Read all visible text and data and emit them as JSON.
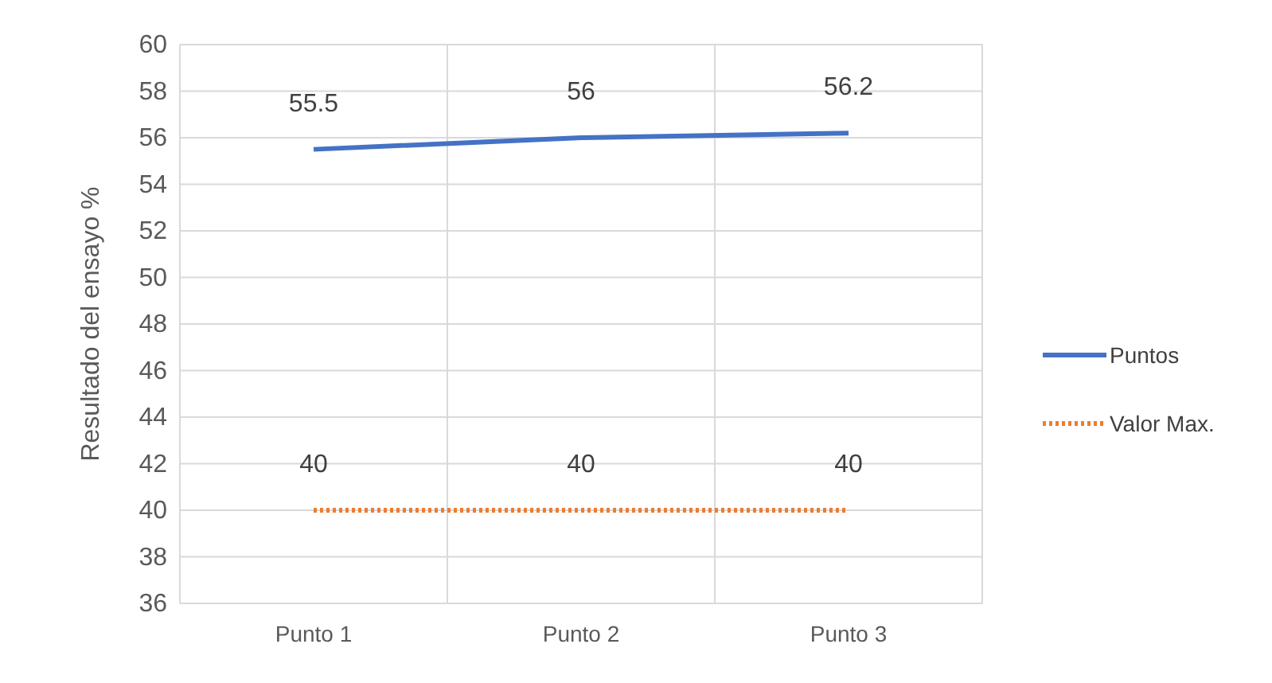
{
  "chart_data": {
    "type": "line",
    "ylabel": "Resultado del ensayo %",
    "categories": [
      "Punto 1",
      "Punto 2",
      "Punto 3"
    ],
    "series": [
      {
        "name": "Puntos",
        "color": "#4472c4",
        "values": [
          55.5,
          56,
          56.2
        ],
        "line_style": "solid"
      },
      {
        "name": "Valor Max.",
        "color": "#ed7d31",
        "values": [
          40,
          40,
          40
        ],
        "line_style": "dotted"
      }
    ],
    "ylim": [
      36,
      60
    ],
    "yticks": [
      36,
      38,
      40,
      42,
      44,
      46,
      48,
      50,
      52,
      54,
      56,
      58,
      60
    ],
    "grid": true,
    "legend": "right",
    "data_labels": true,
    "marker": "none"
  }
}
